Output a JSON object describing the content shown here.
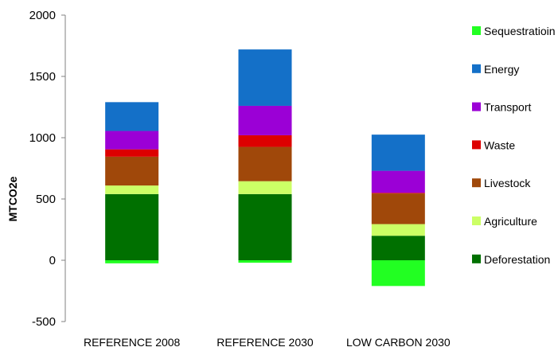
{
  "chart_data": {
    "type": "bar",
    "stacked": true,
    "title": "",
    "xlabel": "",
    "ylabel": "MTCO2e",
    "ylim": [
      -500,
      2000
    ],
    "yticks": [
      -500,
      0,
      500,
      1000,
      1500,
      2000
    ],
    "grid": false,
    "legend_position": "right",
    "categories": [
      "REFERENCE 2008",
      "REFERENCE 2030",
      "LOW CARBON 2030"
    ],
    "series": [
      {
        "name": "Sequestratioin",
        "color": "#22ff22",
        "values": [
          -25,
          -20,
          -210
        ]
      },
      {
        "name": "Deforestation",
        "color": "#007000",
        "values": [
          540,
          540,
          200
        ]
      },
      {
        "name": "Agriculture",
        "color": "#ccff66",
        "values": [
          70,
          105,
          95
        ]
      },
      {
        "name": "Livestock",
        "color": "#a0480a",
        "values": [
          235,
          280,
          250
        ]
      },
      {
        "name": "Waste",
        "color": "#dd0000",
        "values": [
          60,
          95,
          5
        ]
      },
      {
        "name": "Transport",
        "color": "#9b00d6",
        "values": [
          150,
          240,
          180
        ]
      },
      {
        "name": "Energy",
        "color": "#1470c8",
        "values": [
          235,
          460,
          295
        ]
      }
    ],
    "legend_order": [
      "Sequestratioin",
      "Energy",
      "Transport",
      "Waste",
      "Livestock",
      "Agriculture",
      "Deforestation"
    ]
  }
}
